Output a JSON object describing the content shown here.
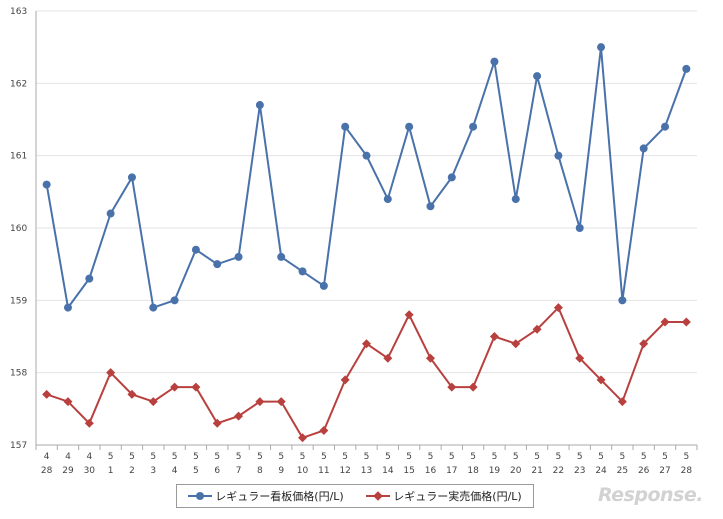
{
  "chart_data": {
    "type": "line",
    "xlabel": "",
    "ylabel": "",
    "ylim": [
      157,
      163
    ],
    "yticks": [
      "157",
      "158",
      "159",
      "160",
      "161",
      "162",
      "163"
    ],
    "x_months": [
      "4",
      "4",
      "4",
      "5",
      "5",
      "5",
      "5",
      "5",
      "5",
      "5",
      "5",
      "5",
      "5",
      "5",
      "5",
      "5",
      "5",
      "5",
      "5",
      "5",
      "5",
      "5",
      "5",
      "5",
      "5",
      "5",
      "5",
      "5",
      "5",
      "5",
      "5"
    ],
    "x_days": [
      "28",
      "29",
      "30",
      "1",
      "2",
      "3",
      "4",
      "5",
      "6",
      "7",
      "8",
      "9",
      "10",
      "11",
      "12",
      "13",
      "14",
      "15",
      "16",
      "17",
      "18",
      "19",
      "20",
      "21",
      "22",
      "23",
      "24",
      "25",
      "26",
      "27",
      "28"
    ],
    "grid": "horizontal",
    "legend_position": "bottom",
    "series": [
      {
        "name": "レギュラー看板価格(円/L)",
        "marker": "circle",
        "color": "#4a72aa",
        "values": [
          160.6,
          158.9,
          159.3,
          160.2,
          160.7,
          158.9,
          159.0,
          159.7,
          159.5,
          159.6,
          161.7,
          159.6,
          159.4,
          159.2,
          161.4,
          161.0,
          160.4,
          161.4,
          160.3,
          160.7,
          161.4,
          162.3,
          160.4,
          162.1,
          161.0,
          160.0,
          162.5,
          159.0,
          161.1,
          161.4,
          162.2
        ]
      },
      {
        "name": "レギュラー実売価格(円/L)",
        "marker": "diamond",
        "color": "#b8413f",
        "values": [
          157.7,
          157.6,
          157.3,
          158.0,
          157.7,
          157.6,
          157.8,
          157.8,
          157.3,
          157.4,
          157.6,
          157.6,
          157.1,
          157.2,
          157.9,
          158.4,
          158.2,
          158.8,
          158.2,
          157.8,
          157.8,
          158.5,
          158.4,
          158.6,
          158.9,
          158.2,
          157.9,
          157.6,
          158.4,
          158.7,
          158.7
        ]
      }
    ]
  },
  "watermark": "Response."
}
